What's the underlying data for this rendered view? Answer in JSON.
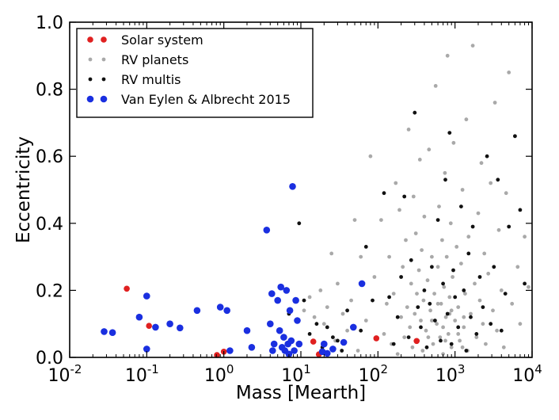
{
  "chart_data": {
    "type": "scatter",
    "xlabel": "Mass [Mearth]",
    "ylabel": "Eccentricity",
    "xscale": "log",
    "xlim": [
      0.01,
      10000
    ],
    "ylim": [
      0.0,
      1.0
    ],
    "x_ticks": [
      {
        "value": 0.01,
        "label": "10",
        "exp": "-2"
      },
      {
        "value": 0.1,
        "label": "10",
        "exp": "-1"
      },
      {
        "value": 1,
        "label": "10",
        "exp": "0"
      },
      {
        "value": 10,
        "label": "10",
        "exp": "1"
      },
      {
        "value": 100,
        "label": "10",
        "exp": "2"
      },
      {
        "value": 1000,
        "label": "10",
        "exp": "3"
      },
      {
        "value": 10000,
        "label": "10",
        "exp": "4"
      }
    ],
    "y_ticks": [
      {
        "value": 0.0,
        "label": "0.0"
      },
      {
        "value": 0.2,
        "label": "0.2"
      },
      {
        "value": 0.4,
        "label": "0.4"
      },
      {
        "value": 0.6,
        "label": "0.6"
      },
      {
        "value": 0.8,
        "label": "0.8"
      },
      {
        "value": 1.0,
        "label": "1.0"
      }
    ],
    "grid": false,
    "legend_position": "top-left",
    "series": [
      {
        "name": "Solar system",
        "color": "#e02020",
        "size": "medium",
        "points": [
          [
            0.055,
            0.205
          ],
          [
            0.107,
            0.094
          ],
          [
            0.815,
            0.007
          ],
          [
            1.0,
            0.017
          ],
          [
            14.5,
            0.047
          ],
          [
            17.1,
            0.009
          ],
          [
            95.2,
            0.057
          ],
          [
            318,
            0.049
          ]
        ]
      },
      {
        "name": "RV planets",
        "color": "#a9a9a9",
        "size": "small",
        "points": [
          [
            11,
            0.14
          ],
          [
            13,
            0.18
          ],
          [
            15,
            0.12
          ],
          [
            18,
            0.2
          ],
          [
            20,
            0.1
          ],
          [
            22,
            0.15
          ],
          [
            25,
            0.31
          ],
          [
            28,
            0.05
          ],
          [
            30,
            0.22
          ],
          [
            35,
            0.13
          ],
          [
            40,
            0.08
          ],
          [
            45,
            0.17
          ],
          [
            50,
            0.41
          ],
          [
            55,
            0.02
          ],
          [
            60,
            0.3
          ],
          [
            70,
            0.11
          ],
          [
            80,
            0.6
          ],
          [
            90,
            0.24
          ],
          [
            110,
            0.41
          ],
          [
            120,
            0.07
          ],
          [
            130,
            0.16
          ],
          [
            140,
            0.3
          ],
          [
            150,
            0.04
          ],
          [
            160,
            0.19
          ],
          [
            170,
            0.52
          ],
          [
            180,
            0.01
          ],
          [
            190,
            0.44
          ],
          [
            200,
            0.12
          ],
          [
            210,
            0.27
          ],
          [
            220,
            0.06
          ],
          [
            230,
            0.35
          ],
          [
            240,
            0.15
          ],
          [
            250,
            0.68
          ],
          [
            260,
            0.09
          ],
          [
            270,
            0.22
          ],
          [
            280,
            0.03
          ],
          [
            290,
            0.48
          ],
          [
            300,
            0.13
          ],
          [
            310,
            0.37
          ],
          [
            320,
            0.19
          ],
          [
            330,
            0.05
          ],
          [
            340,
            0.26
          ],
          [
            350,
            0.59
          ],
          [
            360,
            0.11
          ],
          [
            370,
            0.32
          ],
          [
            380,
            0.02
          ],
          [
            390,
            0.17
          ],
          [
            400,
            0.42
          ],
          [
            420,
            0.08
          ],
          [
            440,
            0.23
          ],
          [
            460,
            0.62
          ],
          [
            480,
            0.14
          ],
          [
            500,
            0.3
          ],
          [
            520,
            0.04
          ],
          [
            540,
            0.19
          ],
          [
            560,
            0.81
          ],
          [
            580,
            0.1
          ],
          [
            600,
            0.27
          ],
          [
            620,
            0.45
          ],
          [
            640,
            0.06
          ],
          [
            660,
            0.16
          ],
          [
            680,
            0.35
          ],
          [
            700,
            0.01
          ],
          [
            720,
            0.21
          ],
          [
            740,
            0.55
          ],
          [
            760,
            0.12
          ],
          [
            780,
            0.3
          ],
          [
            800,
            0.9
          ],
          [
            820,
            0.07
          ],
          [
            850,
            0.18
          ],
          [
            880,
            0.4
          ],
          [
            900,
            0.03
          ],
          [
            930,
            0.24
          ],
          [
            960,
            0.64
          ],
          [
            1000,
            0.11
          ],
          [
            1050,
            0.33
          ],
          [
            1100,
            0.15
          ],
          [
            1150,
            0.05
          ],
          [
            1200,
            0.28
          ],
          [
            1250,
            0.5
          ],
          [
            1300,
            0.09
          ],
          [
            1350,
            0.19
          ],
          [
            1400,
            0.71
          ],
          [
            1450,
            0.02
          ],
          [
            1500,
            0.36
          ],
          [
            1600,
            0.13
          ],
          [
            1700,
            0.93
          ],
          [
            1800,
            0.22
          ],
          [
            1900,
            0.06
          ],
          [
            2000,
            0.43
          ],
          [
            2100,
            0.17
          ],
          [
            2200,
            0.58
          ],
          [
            2300,
            0.1
          ],
          [
            2400,
            0.31
          ],
          [
            2500,
            0.04
          ],
          [
            2700,
            0.25
          ],
          [
            2900,
            0.52
          ],
          [
            3100,
            0.14
          ],
          [
            3300,
            0.76
          ],
          [
            3500,
            0.08
          ],
          [
            3700,
            0.38
          ],
          [
            4000,
            0.2
          ],
          [
            4300,
            0.03
          ],
          [
            4600,
            0.49
          ],
          [
            5000,
            0.85
          ],
          [
            5500,
            0.16
          ],
          [
            6000,
            0.66
          ],
          [
            6500,
            0.27
          ],
          [
            7000,
            0.1
          ],
          [
            8000,
            0.36
          ],
          [
            9000,
            0.21
          ],
          [
            600,
            0.16
          ],
          [
            700,
            0.09
          ],
          [
            900,
            0.14
          ],
          [
            1100,
            0.07
          ],
          [
            1300,
            0.12
          ],
          [
            500,
            0.11
          ],
          [
            450,
            0.06
          ],
          [
            750,
            0.05
          ],
          [
            1250,
            0.03
          ],
          [
            850,
            0.13
          ]
        ]
      },
      {
        "name": "RV multis",
        "color": "#111111",
        "size": "small",
        "points": [
          [
            7,
            0.13
          ],
          [
            9.5,
            0.4
          ],
          [
            11,
            0.17
          ],
          [
            13,
            0.07
          ],
          [
            16,
            0.1
          ],
          [
            19,
            0.03
          ],
          [
            22,
            0.09
          ],
          [
            26,
            0.06
          ],
          [
            30,
            0.05
          ],
          [
            34,
            0.02
          ],
          [
            40,
            0.14
          ],
          [
            60,
            0.08
          ],
          [
            70,
            0.33
          ],
          [
            85,
            0.17
          ],
          [
            120,
            0.49
          ],
          [
            140,
            0.18
          ],
          [
            160,
            0.04
          ],
          [
            180,
            0.12
          ],
          [
            200,
            0.24
          ],
          [
            220,
            0.48
          ],
          [
            250,
            0.06
          ],
          [
            270,
            0.29
          ],
          [
            300,
            0.73
          ],
          [
            330,
            0.15
          ],
          [
            360,
            0.09
          ],
          [
            400,
            0.2
          ],
          [
            430,
            0.03
          ],
          [
            470,
            0.16
          ],
          [
            500,
            0.27
          ],
          [
            550,
            0.11
          ],
          [
            600,
            0.41
          ],
          [
            650,
            0.05
          ],
          [
            700,
            0.22
          ],
          [
            750,
            0.53
          ],
          [
            800,
            0.13
          ],
          [
            850,
            0.67
          ],
          [
            900,
            0.04
          ],
          [
            950,
            0.26
          ],
          [
            1000,
            0.18
          ],
          [
            1100,
            0.09
          ],
          [
            1200,
            0.45
          ],
          [
            1300,
            0.2
          ],
          [
            1400,
            0.02
          ],
          [
            1500,
            0.31
          ],
          [
            1600,
            0.12
          ],
          [
            1700,
            0.39
          ],
          [
            1900,
            0.07
          ],
          [
            2100,
            0.24
          ],
          [
            2300,
            0.15
          ],
          [
            2600,
            0.6
          ],
          [
            2900,
            0.1
          ],
          [
            3200,
            0.27
          ],
          [
            3600,
            0.53
          ],
          [
            4000,
            0.08
          ],
          [
            4500,
            0.19
          ],
          [
            5000,
            0.39
          ],
          [
            6000,
            0.66
          ],
          [
            7000,
            0.44
          ],
          [
            8000,
            0.22
          ]
        ]
      },
      {
        "name": "Van Eylen & Albrecht 2015",
        "color": "#1a2fe0",
        "size": "large",
        "points": [
          [
            0.028,
            0.077
          ],
          [
            0.036,
            0.074
          ],
          [
            0.08,
            0.12
          ],
          [
            0.1,
            0.183
          ],
          [
            0.1,
            0.025
          ],
          [
            0.13,
            0.09
          ],
          [
            0.2,
            0.1
          ],
          [
            0.27,
            0.088
          ],
          [
            0.45,
            0.14
          ],
          [
            0.9,
            0.15
          ],
          [
            1.1,
            0.14
          ],
          [
            1.2,
            0.02
          ],
          [
            2.0,
            0.08
          ],
          [
            2.3,
            0.03
          ],
          [
            3.6,
            0.38
          ],
          [
            4.0,
            0.1
          ],
          [
            4.2,
            0.19
          ],
          [
            4.3,
            0.02
          ],
          [
            4.5,
            0.04
          ],
          [
            5.0,
            0.17
          ],
          [
            5.3,
            0.08
          ],
          [
            5.5,
            0.21
          ],
          [
            5.7,
            0.03
          ],
          [
            6.0,
            0.06
          ],
          [
            6.2,
            0.02
          ],
          [
            6.5,
            0.2
          ],
          [
            6.8,
            0.04
          ],
          [
            7.0,
            0.01
          ],
          [
            7.2,
            0.14
          ],
          [
            7.5,
            0.05
          ],
          [
            7.8,
            0.51
          ],
          [
            8.2,
            0.02
          ],
          [
            8.6,
            0.17
          ],
          [
            9.0,
            0.11
          ],
          [
            9.5,
            0.04
          ],
          [
            19,
            0.017
          ],
          [
            20,
            0.04
          ],
          [
            22,
            0.012
          ],
          [
            26,
            0.025
          ],
          [
            36,
            0.045
          ],
          [
            48,
            0.09
          ],
          [
            62,
            0.22
          ]
        ]
      }
    ]
  }
}
